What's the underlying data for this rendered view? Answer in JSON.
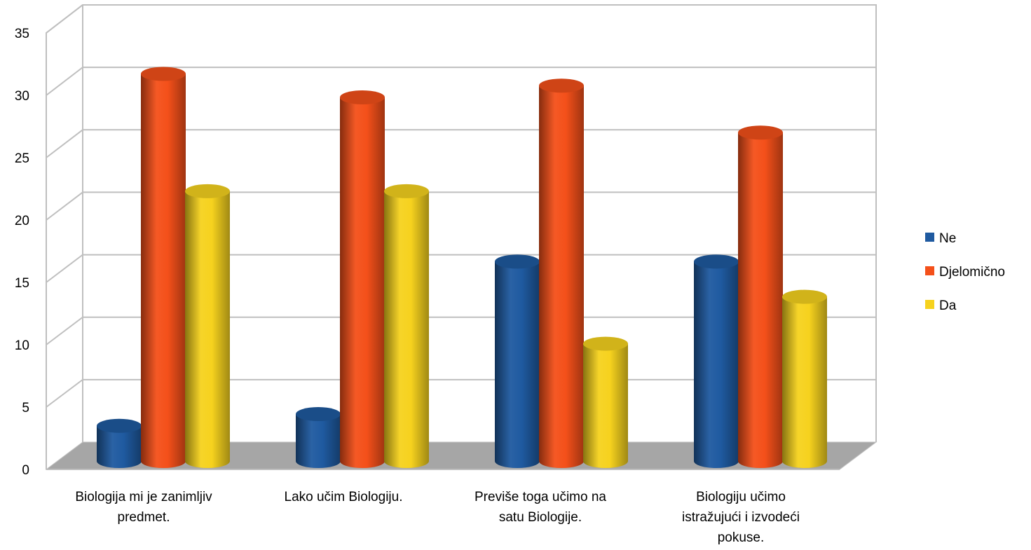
{
  "chart_data": {
    "type": "bar",
    "style": "3d-cylinder",
    "categories": [
      [
        "Biologija mi je zanimljiv",
        "predmet."
      ],
      [
        "Lako učim Biologiju."
      ],
      [
        "Previše toga učimo na",
        "satu Biologije."
      ],
      [
        "Biologiju učimo",
        "istražujući i izvodeći",
        "pokuse."
      ]
    ],
    "series": [
      {
        "name": "Ne",
        "color": "#1f5aa0",
        "values": [
          3,
          4,
          17,
          17
        ]
      },
      {
        "name": "Djelomično",
        "color": "#f4501a",
        "values": [
          33,
          31,
          32,
          28
        ]
      },
      {
        "name": "Da",
        "color": "#f6d21e",
        "values": [
          23,
          23,
          10,
          14
        ]
      }
    ],
    "yticks": [
      "0",
      "5",
      "10",
      "15",
      "20",
      "25",
      "30",
      "35"
    ],
    "ylim": [
      0,
      35
    ],
    "grid": true,
    "legend_position": "right",
    "floor_color": "#a6a6a6"
  }
}
